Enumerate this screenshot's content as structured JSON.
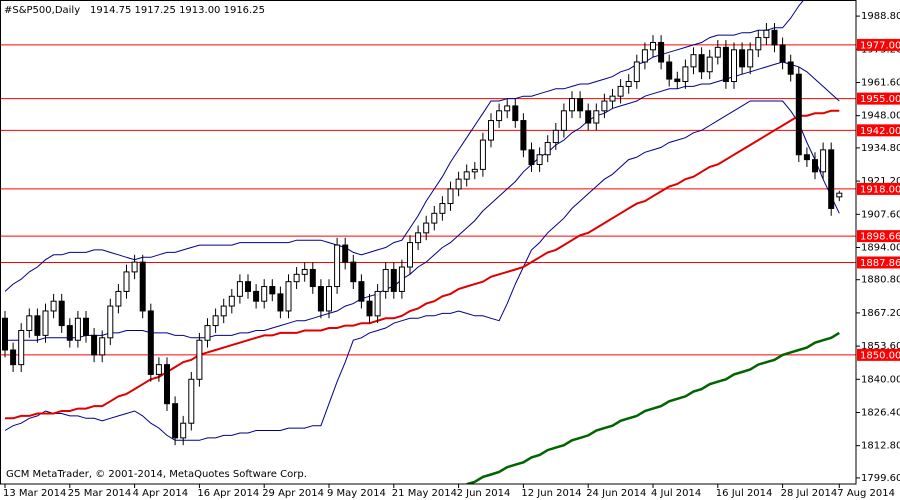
{
  "chart_data": {
    "type": "candlestick",
    "title": "#S&P500,Daily",
    "ohlc_header": "1914.75 1917.25 1913.00 1916.25",
    "copyright": "GCM MetaTrader, © 2001-2014, MetaQuotes Software Corp.",
    "categories": [
      "13 Mar 2014",
      null,
      null,
      null,
      null,
      null,
      null,
      null,
      "25 Mar 2014",
      null,
      null,
      null,
      null,
      null,
      null,
      null,
      "4 Apr 2014",
      null,
      null,
      null,
      null,
      null,
      null,
      null,
      "16 Apr 2014",
      null,
      null,
      null,
      null,
      null,
      null,
      null,
      "29 Apr 2014",
      null,
      null,
      null,
      null,
      null,
      null,
      null,
      "9 May 2014",
      null,
      null,
      null,
      null,
      null,
      null,
      null,
      "21 May 2014",
      null,
      null,
      null,
      null,
      null,
      null,
      null,
      "2 Jun 2014",
      null,
      null,
      null,
      null,
      null,
      null,
      null,
      "12 Jun 2014",
      null,
      null,
      null,
      null,
      null,
      null,
      null,
      "24 Jun 2014",
      null,
      null,
      null,
      null,
      null,
      null,
      null,
      "4 Jul 2014",
      null,
      null,
      null,
      null,
      null,
      null,
      null,
      "16 Jul 2014",
      null,
      null,
      null,
      null,
      null,
      null,
      null,
      "28 Jul 2014",
      null,
      null,
      null,
      null,
      null,
      null,
      "7 Aug 2014"
    ],
    "open": [
      1865,
      1852,
      1846,
      1860,
      1866,
      1858,
      1868,
      1872,
      1862,
      1856,
      1865,
      1858,
      1850,
      1857,
      1870,
      1876,
      1884,
      1888,
      1868,
      1842,
      1846,
      1830,
      1816,
      1822,
      1840,
      1856,
      1862,
      1866,
      1870,
      1874,
      1880,
      1876,
      1872,
      1878,
      1875,
      1868,
      1880,
      1883,
      1885,
      1878,
      1868,
      1878,
      1895,
      1888,
      1880,
      1872,
      1866,
      1876,
      1885,
      1876,
      1886,
      1896,
      1900,
      1904,
      1908,
      1912,
      1918,
      1922,
      1925,
      1926,
      1938,
      1946,
      1950,
      1952,
      1946,
      1934,
      1928,
      1932,
      1937,
      1942,
      1950,
      1955,
      1950,
      1945,
      1950,
      1954,
      1956,
      1960,
      1962,
      1970,
      1975,
      1978,
      1970,
      1963,
      1962,
      1968,
      1973,
      1966,
      1972,
      1976,
      1962,
      1975,
      1968,
      1975,
      1980,
      1983,
      1977,
      1970,
      1965,
      1932,
      1930,
      1925,
      1934,
      1914.75
    ],
    "high": [
      1868,
      1855,
      1863,
      1869,
      1869,
      1871,
      1875,
      1875,
      1865,
      1868,
      1868,
      1861,
      1860,
      1873,
      1879,
      1887,
      1891,
      1891,
      1871,
      1849,
      1849,
      1833,
      1825,
      1843,
      1859,
      1865,
      1869,
      1873,
      1877,
      1883,
      1883,
      1879,
      1881,
      1881,
      1878,
      1883,
      1886,
      1888,
      1888,
      1881,
      1881,
      1898,
      1898,
      1891,
      1883,
      1875,
      1879,
      1888,
      1888,
      1889,
      1899,
      1903,
      1907,
      1911,
      1915,
      1921,
      1925,
      1928,
      1929,
      1941,
      1949,
      1953,
      1955,
      1955,
      1949,
      1937,
      1935,
      1940,
      1945,
      1953,
      1958,
      1958,
      1953,
      1953,
      1957,
      1959,
      1963,
      1965,
      1973,
      1978,
      1981,
      1981,
      1973,
      1966,
      1971,
      1976,
      1976,
      1975,
      1979,
      1979,
      1978,
      1978,
      1978,
      1983,
      1986,
      1986,
      1980,
      1973,
      1968,
      1935,
      1933,
      1937,
      1937,
      1917.25
    ],
    "low": [
      1849,
      1843,
      1843,
      1857,
      1855,
      1855,
      1865,
      1859,
      1853,
      1853,
      1855,
      1847,
      1847,
      1854,
      1867,
      1873,
      1881,
      1865,
      1839,
      1839,
      1827,
      1813,
      1813,
      1819,
      1837,
      1853,
      1859,
      1863,
      1867,
      1871,
      1873,
      1869,
      1869,
      1872,
      1865,
      1865,
      1877,
      1880,
      1875,
      1865,
      1865,
      1875,
      1885,
      1877,
      1869,
      1863,
      1863,
      1873,
      1873,
      1873,
      1883,
      1893,
      1897,
      1901,
      1905,
      1909,
      1915,
      1919,
      1922,
      1923,
      1935,
      1943,
      1947,
      1943,
      1931,
      1925,
      1925,
      1929,
      1934,
      1939,
      1947,
      1947,
      1942,
      1942,
      1947,
      1951,
      1953,
      1957,
      1959,
      1967,
      1972,
      1967,
      1960,
      1959,
      1959,
      1965,
      1963,
      1963,
      1969,
      1959,
      1959,
      1965,
      1965,
      1972,
      1977,
      1974,
      1967,
      1962,
      1929,
      1927,
      1922,
      1922,
      1907,
      1913
    ],
    "close": [
      1852,
      1846,
      1860,
      1866,
      1858,
      1868,
      1872,
      1862,
      1856,
      1865,
      1858,
      1850,
      1857,
      1870,
      1876,
      1884,
      1888,
      1868,
      1842,
      1846,
      1830,
      1816,
      1822,
      1840,
      1856,
      1862,
      1866,
      1870,
      1874,
      1880,
      1876,
      1872,
      1878,
      1875,
      1868,
      1880,
      1883,
      1885,
      1878,
      1868,
      1878,
      1895,
      1888,
      1880,
      1872,
      1866,
      1876,
      1885,
      1876,
      1886,
      1896,
      1900,
      1904,
      1908,
      1912,
      1918,
      1922,
      1925,
      1926,
      1938,
      1946,
      1950,
      1952,
      1946,
      1934,
      1928,
      1932,
      1937,
      1942,
      1950,
      1955,
      1950,
      1945,
      1950,
      1954,
      1956,
      1960,
      1962,
      1970,
      1975,
      1978,
      1970,
      1963,
      1962,
      1968,
      1973,
      1966,
      1972,
      1976,
      1962,
      1975,
      1968,
      1975,
      1980,
      1983,
      1977,
      1970,
      1965,
      1932,
      1930,
      1925,
      1934,
      1910,
      1916.25
    ],
    "up_color": "#ffffff",
    "down_color": "#000000",
    "lines": [
      {
        "color": "#00008b",
        "width": 1,
        "values": [
          1876,
          1879,
          1881,
          1884,
          1886,
          1889,
          1891,
          1891,
          1892,
          1892,
          1892,
          1893,
          1893,
          1892,
          1891,
          1890,
          1889,
          1890,
          1890,
          1891,
          1892,
          1892,
          1893,
          1894,
          1895,
          1895,
          1895,
          1895,
          1895,
          1896,
          1896,
          1896,
          1896,
          1896,
          1896,
          1896,
          1897,
          1897,
          1897,
          1897,
          1896,
          1895,
          1894,
          1892,
          1891,
          1892,
          1893,
          1894,
          1896,
          1897,
          1902,
          1907,
          1913,
          1918,
          1923,
          1929,
          1934,
          1939,
          1944,
          1949,
          1954,
          1954,
          1955,
          1955,
          1956,
          1956,
          1957,
          1958,
          1959,
          1959,
          1960,
          1961,
          1961,
          1962,
          1963,
          1964,
          1966,
          1967,
          1969,
          1970,
          1972,
          1973,
          1974,
          1975,
          1976,
          1977,
          1978,
          1980,
          1981,
          1981,
          1981,
          1982,
          1982,
          1983,
          1983,
          1984,
          1984,
          1988,
          1993,
          1997,
          2000,
          2002,
          2003,
          2004
        ]
      },
      {
        "color": "#00008b",
        "width": 1,
        "values": [
          1856,
          1856,
          1856,
          1856,
          1856,
          1857,
          1857,
          1857,
          1857,
          1857,
          1858,
          1858,
          1858,
          1859,
          1859,
          1860,
          1860,
          1860,
          1859,
          1859,
          1859,
          1858,
          1858,
          1857,
          1857,
          1857,
          1858,
          1858,
          1858,
          1859,
          1859,
          1860,
          1860,
          1861,
          1862,
          1863,
          1864,
          1864,
          1865,
          1866,
          1867,
          1868,
          1870,
          1871,
          1873,
          1874,
          1875,
          1877,
          1878,
          1881,
          1883,
          1886,
          1888,
          1891,
          1894,
          1896,
          1899,
          1902,
          1905,
          1909,
          1912,
          1915,
          1918,
          1921,
          1925,
          1928,
          1931,
          1933,
          1936,
          1938,
          1941,
          1943,
          1946,
          1948,
          1949,
          1951,
          1952,
          1953,
          1954,
          1956,
          1957,
          1958,
          1959,
          1959,
          1960,
          1960,
          1961,
          1961,
          1962,
          1963,
          1964,
          1965,
          1966,
          1967,
          1968,
          1969,
          1970,
          1969,
          1968,
          1966,
          1963,
          1960,
          1957,
          1954
        ]
      },
      {
        "color": "#00008b",
        "width": 1,
        "values": [
          1819,
          1821,
          1822,
          1824,
          1825,
          1827,
          1826,
          1826,
          1825,
          1825,
          1824,
          1824,
          1823,
          1824,
          1825,
          1826,
          1827,
          1825,
          1822,
          1820,
          1817,
          1815,
          1815,
          1815,
          1815,
          1816,
          1816,
          1817,
          1817,
          1818,
          1818,
          1819,
          1819,
          1819,
          1819,
          1820,
          1820,
          1820,
          1821,
          1821,
          1830,
          1839,
          1847,
          1856,
          1857,
          1859,
          1860,
          1861,
          1863,
          1864,
          1865,
          1865,
          1866,
          1866,
          1867,
          1867,
          1868,
          1867,
          1866,
          1866,
          1865,
          1864,
          1871,
          1879,
          1886,
          1893,
          1896,
          1900,
          1903,
          1906,
          1910,
          1913,
          1916,
          1919,
          1922,
          1924,
          1927,
          1930,
          1931,
          1933,
          1934,
          1935,
          1937,
          1938,
          1939,
          1941,
          1942,
          1944,
          1946,
          1948,
          1950,
          1952,
          1954,
          1954,
          1954,
          1954,
          1954,
          1950,
          1945,
          1937,
          1930,
          1922,
          1915,
          1908
        ]
      },
      {
        "color": "#e00000",
        "width": 2,
        "values": [
          1824,
          1824,
          1825,
          1825,
          1826,
          1826,
          1826,
          1827,
          1827,
          1828,
          1828,
          1829,
          1829,
          1831,
          1833,
          1834,
          1836,
          1838,
          1840,
          1841,
          1843,
          1845,
          1847,
          1848,
          1850,
          1851,
          1852,
          1853,
          1854,
          1855,
          1856,
          1857,
          1858,
          1858,
          1859,
          1859,
          1859,
          1860,
          1860,
          1860,
          1861,
          1861,
          1862,
          1862,
          1863,
          1863,
          1864,
          1865,
          1865,
          1866,
          1868,
          1869,
          1871,
          1872,
          1874,
          1875,
          1877,
          1878,
          1879,
          1880,
          1882,
          1883,
          1884,
          1885,
          1886,
          1888,
          1890,
          1892,
          1893,
          1895,
          1897,
          1899,
          1900,
          1902,
          1904,
          1906,
          1908,
          1910,
          1912,
          1913,
          1915,
          1917,
          1919,
          1920,
          1922,
          1923,
          1925,
          1927,
          1928,
          1930,
          1932,
          1934,
          1936,
          1938,
          1940,
          1942,
          1944,
          1946,
          1948,
          1948,
          1949,
          1949,
          1950,
          1950
        ]
      },
      {
        "color": "#006400",
        "width": 2.5,
        "values": [
          null,
          null,
          null,
          null,
          null,
          null,
          null,
          null,
          null,
          null,
          null,
          null,
          null,
          null,
          null,
          null,
          null,
          null,
          null,
          null,
          null,
          null,
          null,
          null,
          null,
          null,
          null,
          null,
          null,
          null,
          null,
          null,
          null,
          null,
          null,
          null,
          null,
          null,
          null,
          null,
          null,
          null,
          null,
          null,
          null,
          null,
          null,
          null,
          null,
          null,
          null,
          null,
          null,
          null,
          null,
          null,
          null,
          1797,
          1798,
          1800,
          1801,
          1802,
          1804,
          1805,
          1806,
          1808,
          1809,
          1811,
          1812,
          1813,
          1815,
          1816,
          1817,
          1819,
          1820,
          1821,
          1823,
          1824,
          1825,
          1827,
          1828,
          1829,
          1831,
          1832,
          1833,
          1835,
          1836,
          1838,
          1839,
          1840,
          1842,
          1843,
          1844,
          1846,
          1847,
          1848,
          1850,
          1851,
          1852,
          1853,
          1855,
          1856,
          1857,
          1859
        ]
      }
    ],
    "levels": [
      {
        "value": 1977,
        "label": "1977.00"
      },
      {
        "value": 1955,
        "label": "1955.00"
      },
      {
        "value": 1942,
        "label": "1942.00"
      },
      {
        "value": 1918,
        "label": "1918.00"
      },
      1898.66,
      1887.86,
      {
        "value": 1850,
        "label": "1850.00"
      }
    ],
    "level_color": "#ff0000",
    "ylim": [
      1797.1,
      1995.4
    ],
    "yticks": [
      {
        "value": 1988.8,
        "label": "1988.80"
      },
      {
        "value": 1975.2,
        "label": "1975.20"
      },
      {
        "value": 1961.6,
        "label": "1961.60"
      },
      {
        "value": 1948,
        "label": "1948.00"
      },
      {
        "value": 1934.8,
        "label": "1934.80"
      },
      {
        "value": 1921.2,
        "label": "1921.20"
      },
      {
        "value": 1907.6,
        "label": "1907.60"
      },
      {
        "value": 1894,
        "label": "1894.00"
      },
      {
        "value": 1880.8,
        "label": "1880.80"
      },
      {
        "value": 1867.2,
        "label": "1867.20"
      },
      {
        "value": 1853.6,
        "label": "1853.60"
      },
      {
        "value": 1840,
        "label": "1840.00"
      },
      {
        "value": 1826.4,
        "label": "1826.40"
      },
      {
        "value": 1812.8,
        "label": "1812.80"
      },
      {
        "value": 1799.6,
        "label": "1799.60"
      }
    ]
  }
}
